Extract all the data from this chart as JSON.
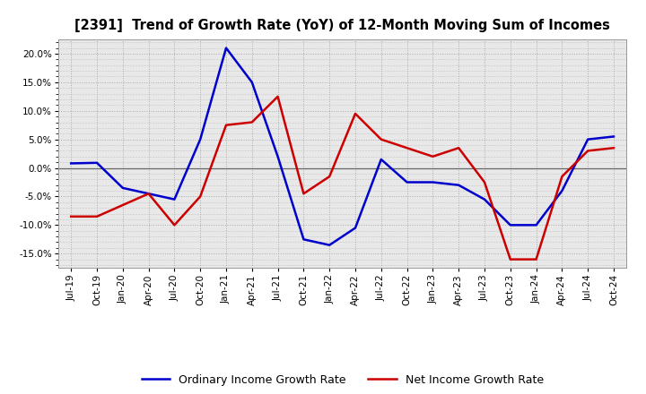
{
  "title": "[2391]  Trend of Growth Rate (YoY) of 12-Month Moving Sum of Incomes",
  "x_labels": [
    "Jul-19",
    "Oct-19",
    "Jan-20",
    "Apr-20",
    "Jul-20",
    "Oct-20",
    "Jan-21",
    "Apr-21",
    "Jul-21",
    "Oct-21",
    "Jan-22",
    "Apr-22",
    "Jul-22",
    "Oct-22",
    "Jan-23",
    "Apr-23",
    "Jul-23",
    "Oct-23",
    "Jan-24",
    "Apr-24",
    "Jul-24",
    "Oct-24"
  ],
  "ordinary_income": [
    0.8,
    0.9,
    -3.5,
    -4.5,
    -5.5,
    5.0,
    21.0,
    15.0,
    2.0,
    -12.5,
    -13.5,
    -10.5,
    1.5,
    -2.5,
    -2.5,
    -3.0,
    -5.5,
    -10.0,
    -10.0,
    -4.0,
    5.0,
    5.5
  ],
  "net_income": [
    -8.5,
    -8.5,
    -6.5,
    -4.5,
    -10.0,
    -5.0,
    7.5,
    8.0,
    12.5,
    -4.5,
    -1.5,
    9.5,
    5.0,
    3.5,
    2.0,
    3.5,
    -2.5,
    -16.0,
    -16.0,
    -1.5,
    3.0,
    3.5
  ],
  "ordinary_color": "#0000cc",
  "net_color": "#cc0000",
  "ylim": [
    -17.5,
    22.5
  ],
  "yticks": [
    -15.0,
    -10.0,
    -5.0,
    0.0,
    5.0,
    10.0,
    15.0,
    20.0
  ],
  "bg_color": "#ffffff",
  "plot_bg_color": "#e8e8e8",
  "legend_ordinary": "Ordinary Income Growth Rate",
  "legend_net": "Net Income Growth Rate",
  "grid_color": "#aaaaaa",
  "zero_line_color": "#666666",
  "line_width": 1.8,
  "title_fontsize": 10.5,
  "tick_fontsize": 7.5
}
